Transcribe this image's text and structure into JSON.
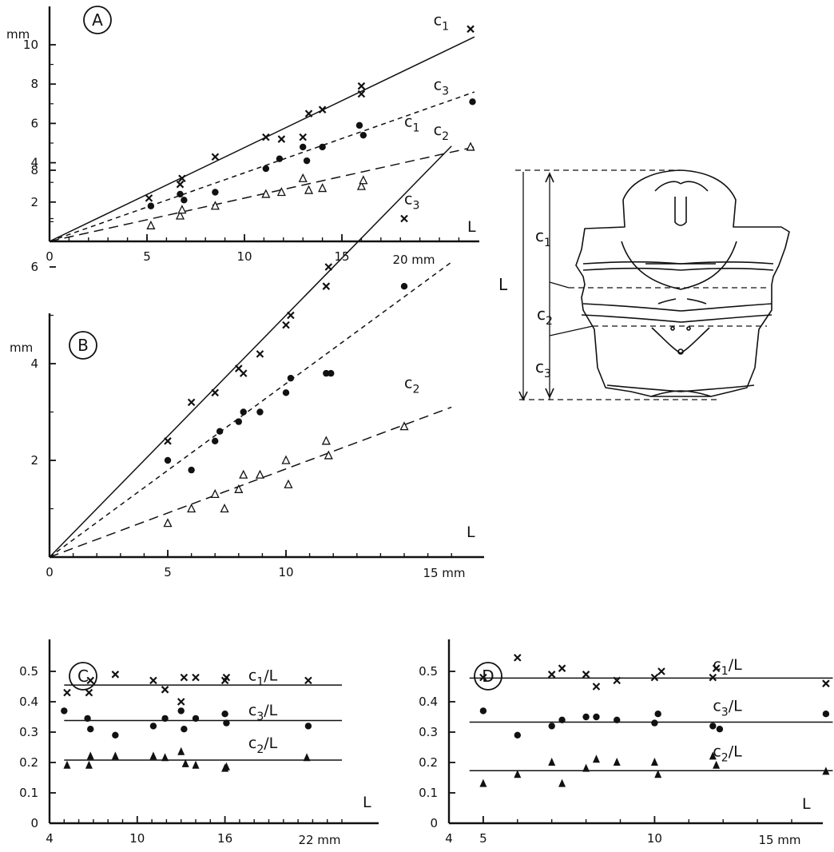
{
  "chart_data": [
    {
      "panel": "A",
      "type": "scatter",
      "ylabel": "mm",
      "xlabel": "L",
      "x_unit": "20 mm",
      "xlim": [
        0,
        22.5
      ],
      "ylim": [
        0,
        11
      ],
      "x_ticks": [
        0,
        5,
        10,
        15
      ],
      "x_tick_labels": [
        "0",
        "5",
        "10",
        "15"
      ],
      "y_ticks": [
        2,
        4,
        6,
        8,
        10
      ],
      "y_tick_labels": [
        "2",
        "4",
        "6",
        "8",
        "10"
      ],
      "lines": [
        {
          "series": "c1",
          "style": "solid",
          "from": [
            0,
            0
          ],
          "to": [
            21.8,
            10.4
          ]
        },
        {
          "series": "c3",
          "style": "short-dash",
          "from": [
            0,
            0
          ],
          "to": [
            21.8,
            7.6
          ]
        },
        {
          "series": "c2",
          "style": "long-dash",
          "from": [
            0,
            0
          ],
          "to": [
            21.8,
            4.8
          ]
        }
      ],
      "series": [
        {
          "name": "c",
          "sub": "1",
          "marker": "x",
          "label_pos": [
            19.7,
            11.0
          ],
          "points": [
            [
              5.1,
              2.2
            ],
            [
              6.7,
              2.9
            ],
            [
              6.8,
              3.2
            ],
            [
              8.5,
              4.3
            ],
            [
              11.1,
              5.3
            ],
            [
              11.9,
              5.2
            ],
            [
              13.0,
              5.3
            ],
            [
              13.3,
              6.5
            ],
            [
              14.0,
              6.7
            ],
            [
              16.0,
              7.5
            ],
            [
              16.0,
              7.9
            ],
            [
              21.6,
              10.8
            ]
          ]
        },
        {
          "name": "c",
          "sub": "3",
          "marker": "dot",
          "label_pos": [
            19.7,
            7.7
          ],
          "points": [
            [
              5.2,
              1.8
            ],
            [
              6.7,
              2.4
            ],
            [
              6.9,
              2.1
            ],
            [
              8.5,
              2.5
            ],
            [
              11.1,
              3.7
            ],
            [
              11.8,
              4.2
            ],
            [
              13.0,
              4.8
            ],
            [
              13.2,
              4.1
            ],
            [
              14.0,
              4.8
            ],
            [
              15.9,
              5.9
            ],
            [
              16.1,
              5.4
            ],
            [
              21.7,
              7.1
            ]
          ]
        },
        {
          "name": "c",
          "sub": "2",
          "marker": "triangle-open",
          "label_pos": [
            19.7,
            5.4
          ],
          "points": [
            [
              5.2,
              0.8
            ],
            [
              6.7,
              1.3
            ],
            [
              6.8,
              1.6
            ],
            [
              8.5,
              1.8
            ],
            [
              11.1,
              2.4
            ],
            [
              11.9,
              2.5
            ],
            [
              13.0,
              3.2
            ],
            [
              13.3,
              2.6
            ],
            [
              14.0,
              2.7
            ],
            [
              16.0,
              2.8
            ],
            [
              16.1,
              3.1
            ],
            [
              21.6,
              4.8
            ]
          ]
        }
      ]
    },
    {
      "panel": "B",
      "type": "scatter",
      "ylabel": "mm",
      "xlabel": "L",
      "x_unit": "15 mm",
      "xlim": [
        0,
        17.2
      ],
      "ylim": [
        0,
        9
      ],
      "x_ticks": [
        0,
        5,
        10
      ],
      "x_tick_labels": [
        "0",
        "5",
        "10"
      ],
      "y_ticks": [
        2,
        4,
        6,
        8
      ],
      "y_tick_labels": [
        "2",
        "4",
        "6",
        "8"
      ],
      "lines": [
        {
          "series": "c1",
          "style": "solid",
          "from": [
            0,
            0
          ],
          "to": [
            17.0,
            8.5
          ]
        },
        {
          "series": "c3",
          "style": "short-dash",
          "from": [
            0,
            0
          ],
          "to": [
            17.0,
            6.1
          ]
        },
        {
          "series": "c2",
          "style": "long-dash",
          "from": [
            0,
            0
          ],
          "to": [
            17.0,
            3.1
          ]
        }
      ],
      "series": [
        {
          "name": "c",
          "sub": "1",
          "marker": "x",
          "label_pos": [
            15.0,
            8.9
          ],
          "points": [
            [
              5.0,
              2.4
            ],
            [
              6.0,
              3.2
            ],
            [
              7.0,
              3.4
            ],
            [
              8.0,
              3.9
            ],
            [
              8.2,
              3.8
            ],
            [
              8.9,
              4.2
            ],
            [
              10.0,
              4.8
            ],
            [
              10.2,
              5.0
            ],
            [
              11.7,
              5.6
            ],
            [
              11.8,
              6.0
            ],
            [
              15.0,
              7.0
            ]
          ]
        },
        {
          "name": "c",
          "sub": "3",
          "marker": "dot",
          "label_pos": [
            15.0,
            7.3
          ],
          "points": [
            [
              5.0,
              2.0
            ],
            [
              6.0,
              1.8
            ],
            [
              7.0,
              2.4
            ],
            [
              7.2,
              2.6
            ],
            [
              8.0,
              2.8
            ],
            [
              8.2,
              3.0
            ],
            [
              8.9,
              3.0
            ],
            [
              10.0,
              3.4
            ],
            [
              10.2,
              3.7
            ],
            [
              11.7,
              3.8
            ],
            [
              11.9,
              3.8
            ],
            [
              15.0,
              5.6
            ]
          ]
        },
        {
          "name": "c",
          "sub": "2",
          "marker": "triangle-open",
          "label_pos": [
            15.0,
            3.5
          ],
          "points": [
            [
              5.0,
              0.7
            ],
            [
              6.0,
              1.0
            ],
            [
              7.0,
              1.3
            ],
            [
              7.4,
              1.0
            ],
            [
              8.0,
              1.4
            ],
            [
              8.2,
              1.7
            ],
            [
              8.9,
              1.7
            ],
            [
              10.0,
              2.0
            ],
            [
              10.1,
              1.5
            ],
            [
              11.7,
              2.4
            ],
            [
              11.8,
              2.1
            ],
            [
              15.0,
              2.7
            ]
          ]
        }
      ]
    },
    {
      "panel": "C",
      "type": "scatter",
      "xlabel": "L",
      "x_unit": "22 mm",
      "xlim": [
        4,
        24.5
      ],
      "ylim": [
        0,
        0.58
      ],
      "x_ticks": [
        4,
        10,
        16
      ],
      "x_tick_labels": [
        "4",
        "10",
        "16"
      ],
      "y_ticks": [
        0,
        0.1,
        0.2,
        0.3,
        0.4,
        0.5
      ],
      "y_tick_labels": [
        "0",
        "0.1",
        "0.2",
        "0.3",
        "0.4",
        "0.5"
      ],
      "lines": [
        {
          "series": "c1/L",
          "style": "solid",
          "from": [
            5.0,
            0.455
          ],
          "to": [
            24.0,
            0.455
          ]
        },
        {
          "series": "c3/L",
          "style": "solid",
          "from": [
            5.0,
            0.338
          ],
          "to": [
            24.0,
            0.338
          ]
        },
        {
          "series": "c2/L",
          "style": "solid",
          "from": [
            5.0,
            0.208
          ],
          "to": [
            24.0,
            0.208
          ]
        }
      ],
      "series": [
        {
          "name": "c",
          "sub": "1",
          "suffix": "/L",
          "marker": "x",
          "label_pos": [
            17.6,
            0.47
          ],
          "points": [
            [
              5.2,
              0.43
            ],
            [
              6.7,
              0.43
            ],
            [
              6.8,
              0.47
            ],
            [
              8.5,
              0.49
            ],
            [
              11.1,
              0.47
            ],
            [
              11.9,
              0.44
            ],
            [
              13.0,
              0.4
            ],
            [
              13.2,
              0.48
            ],
            [
              14.0,
              0.48
            ],
            [
              16.0,
              0.47
            ],
            [
              16.1,
              0.48
            ],
            [
              21.7,
              0.47
            ]
          ]
        },
        {
          "name": "c",
          "sub": "3",
          "suffix": "/L",
          "marker": "dot",
          "label_pos": [
            17.6,
            0.355
          ],
          "points": [
            [
              5.0,
              0.37
            ],
            [
              6.6,
              0.345
            ],
            [
              6.8,
              0.31
            ],
            [
              8.5,
              0.29
            ],
            [
              11.1,
              0.32
            ],
            [
              11.9,
              0.345
            ],
            [
              13.0,
              0.37
            ],
            [
              13.2,
              0.31
            ],
            [
              14.0,
              0.345
            ],
            [
              16.0,
              0.36
            ],
            [
              16.1,
              0.33
            ],
            [
              21.7,
              0.32
            ]
          ]
        },
        {
          "name": "c",
          "sub": "2",
          "suffix": "/L",
          "marker": "triangle-filled",
          "label_pos": [
            17.6,
            0.248
          ],
          "points": [
            [
              5.2,
              0.19
            ],
            [
              6.7,
              0.19
            ],
            [
              6.8,
              0.22
            ],
            [
              8.5,
              0.22
            ],
            [
              11.1,
              0.22
            ],
            [
              11.9,
              0.215
            ],
            [
              13.0,
              0.235
            ],
            [
              13.3,
              0.195
            ],
            [
              14.0,
              0.19
            ],
            [
              16.0,
              0.18
            ],
            [
              16.1,
              0.185
            ],
            [
              21.6,
              0.215
            ]
          ]
        }
      ]
    },
    {
      "panel": "D",
      "type": "scatter",
      "xlabel": "L",
      "x_unit": "15 mm",
      "xlim": [
        4,
        15.6
      ],
      "ylim": [
        0,
        0.58
      ],
      "x_ticks": [
        4,
        5,
        10
      ],
      "x_tick_labels": [
        "4",
        "5",
        "10"
      ],
      "y_ticks": [
        0,
        0.1,
        0.2,
        0.3,
        0.4,
        0.5
      ],
      "y_tick_labels": [
        "0",
        "0.1",
        "0.2",
        "0.3",
        "0.4",
        "0.5"
      ],
      "lines": [
        {
          "series": "c1/L",
          "style": "solid",
          "from": [
            4.6,
            0.478
          ],
          "to": [
            15.2,
            0.478
          ]
        },
        {
          "series": "c3/L",
          "style": "solid",
          "from": [
            4.6,
            0.333
          ],
          "to": [
            15.2,
            0.333
          ]
        },
        {
          "series": "c2/L",
          "style": "solid",
          "from": [
            4.6,
            0.173
          ],
          "to": [
            15.2,
            0.173
          ]
        }
      ],
      "series": [
        {
          "name": "c",
          "sub": "1",
          "suffix": "/L",
          "marker": "x",
          "label_pos": [
            11.7,
            0.505
          ],
          "points": [
            [
              5.0,
              0.48
            ],
            [
              6.0,
              0.545
            ],
            [
              7.0,
              0.49
            ],
            [
              7.3,
              0.51
            ],
            [
              8.0,
              0.49
            ],
            [
              8.3,
              0.45
            ],
            [
              8.9,
              0.47
            ],
            [
              10.0,
              0.48
            ],
            [
              10.2,
              0.5
            ],
            [
              11.7,
              0.48
            ],
            [
              11.8,
              0.51
            ],
            [
              15.0,
              0.46
            ]
          ]
        },
        {
          "name": "c",
          "sub": "3",
          "suffix": "/L",
          "marker": "dot",
          "label_pos": [
            11.7,
            0.37
          ],
          "points": [
            [
              5.0,
              0.37
            ],
            [
              6.0,
              0.29
            ],
            [
              7.0,
              0.32
            ],
            [
              7.3,
              0.34
            ],
            [
              8.0,
              0.35
            ],
            [
              8.3,
              0.35
            ],
            [
              8.9,
              0.34
            ],
            [
              10.0,
              0.33
            ],
            [
              10.1,
              0.36
            ],
            [
              11.7,
              0.32
            ],
            [
              11.9,
              0.31
            ],
            [
              15.0,
              0.36
            ]
          ]
        },
        {
          "name": "c",
          "sub": "2",
          "suffix": "/L",
          "marker": "triangle-filled",
          "label_pos": [
            11.7,
            0.22
          ],
          "points": [
            [
              5.0,
              0.13
            ],
            [
              6.0,
              0.16
            ],
            [
              7.0,
              0.2
            ],
            [
              7.3,
              0.13
            ],
            [
              8.0,
              0.18
            ],
            [
              8.3,
              0.21
            ],
            [
              8.9,
              0.2
            ],
            [
              10.0,
              0.2
            ],
            [
              10.1,
              0.16
            ],
            [
              11.7,
              0.22
            ],
            [
              11.8,
              0.19
            ],
            [
              15.0,
              0.17
            ]
          ]
        }
      ]
    }
  ],
  "diagram": {
    "measure_label": "L",
    "segments": [
      {
        "name": "c",
        "sub": "1"
      },
      {
        "name": "c",
        "sub": "2"
      },
      {
        "name": "c",
        "sub": "3"
      }
    ]
  }
}
